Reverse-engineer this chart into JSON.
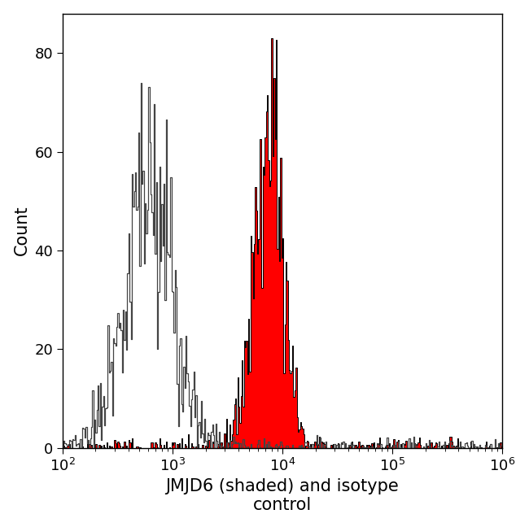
{
  "xlabel_line1": "JMJD6 (shaded) and isotype",
  "xlabel_line2": "control",
  "ylabel": "Count",
  "ylim": [
    0,
    88
  ],
  "yticks": [
    0,
    20,
    40,
    60,
    80
  ],
  "background_color": "#ffffff",
  "isotype_color": "#444444",
  "jmjd6_fill_color": "#ff0000",
  "jmjd6_edge_color": "#000000",
  "isotype_peak_log": 2.78,
  "isotype_peak_count": 74,
  "isotype_sigma": 0.22,
  "jmjd6_peak_log": 3.87,
  "jmjd6_peak_count": 83,
  "jmjd6_sigma": 0.13,
  "n_bins": 400,
  "noise_seed": 7,
  "iso_n_samples": 12000,
  "jmjd6_n_samples": 10000,
  "xlabel_fontsize": 15,
  "ylabel_fontsize": 15,
  "tick_labelsize": 13
}
